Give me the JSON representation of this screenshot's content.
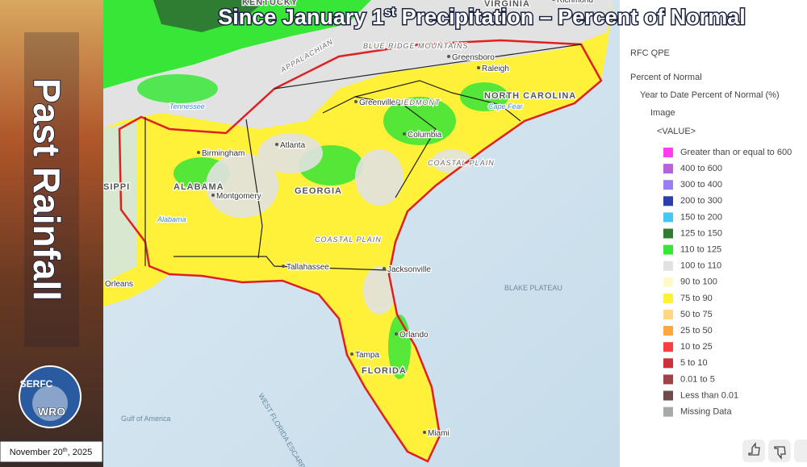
{
  "title": {
    "text": "Since January 1",
    "sup": "st",
    "rest": " Precipitation – Percent of Normal"
  },
  "side_title": "Past Rainfall",
  "date": {
    "text": "November 20",
    "sup": "th",
    "rest": ", 2025"
  },
  "logo": {
    "top": "SERFC",
    "bottom": "WRO"
  },
  "legend": {
    "layer": "RFC QPE",
    "group": "Percent of Normal",
    "sublayer": "Year to Date Percent of Normal (%)",
    "image": "Image",
    "field": "<VALUE>",
    "items": [
      {
        "label": "Greater than or equal to 600",
        "color": "#ff3cf0"
      },
      {
        "label": "400 to 600",
        "color": "#b860e0"
      },
      {
        "label": "300 to 400",
        "color": "#9a7ef0"
      },
      {
        "label": "200 to 300",
        "color": "#2c3ea8"
      },
      {
        "label": "150 to 200",
        "color": "#44c8f2"
      },
      {
        "label": "125 to 150",
        "color": "#2e7d32"
      },
      {
        "label": "110 to 125",
        "color": "#38e638"
      },
      {
        "label": "100 to 110",
        "color": "#e2e2e2"
      },
      {
        "label": "90 to 100",
        "color": "#fffac8"
      },
      {
        "label": "75 to 90",
        "color": "#fff03a"
      },
      {
        "label": "50 to 75",
        "color": "#ffd684"
      },
      {
        "label": "25 to 50",
        "color": "#ffa63c"
      },
      {
        "label": "10 to 25",
        "color": "#f44040"
      },
      {
        "label": "5 to 10",
        "color": "#cc3038"
      },
      {
        "label": "0.01 to 5",
        "color": "#9e4446"
      },
      {
        "label": "Less than 0.01",
        "color": "#6e4a4a"
      },
      {
        "label": "Missing Data",
        "color": "#a8a8a8"
      }
    ]
  },
  "map_labels": [
    "KENTUCKY",
    "VIRGINIA",
    "Richmond",
    "Greensboro",
    "Raleigh",
    "NORTH CAROLINA",
    "Greenville",
    "Columbia",
    "Birmingham",
    "Atlanta",
    "ALABAMA",
    "Montgomery",
    "GEORGIA",
    "Tallahassee",
    "Jacksonville",
    "Orlando",
    "Tampa",
    "FLORIDA",
    "Miami",
    "Orleans",
    "SIPPI",
    "APPALACHIAN",
    "BLUE RIDGE MOUNTAINS",
    "PIEDMONT",
    "COASTAL PLAIN",
    "COASTAL PLAIN",
    "BLAKE PLATEAU",
    "Gulf of America",
    "WEST FLORIDA ESCARPMENT",
    "Tennessee",
    "Alabama",
    "Cape Fear"
  ]
}
